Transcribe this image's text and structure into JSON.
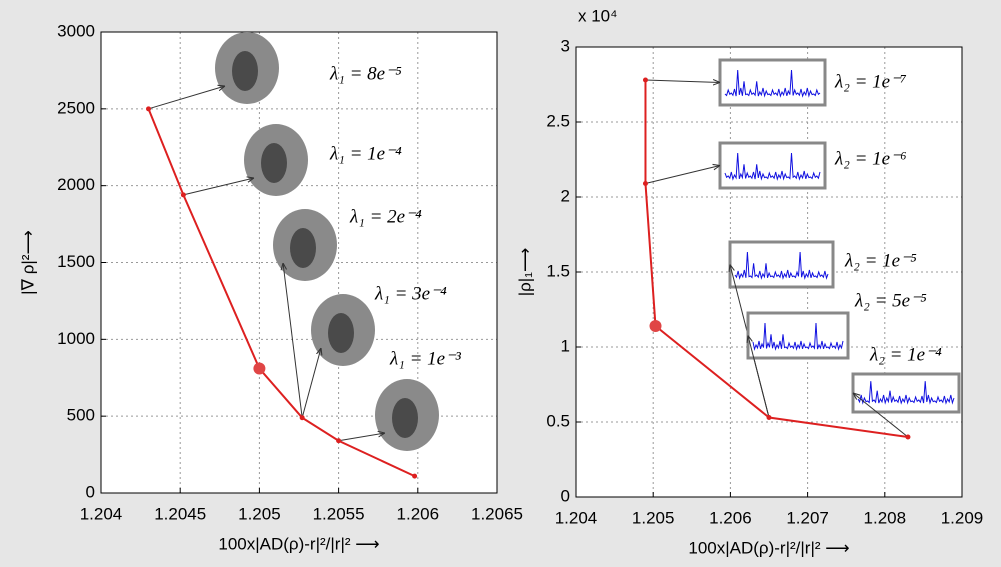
{
  "chart_data": [
    {
      "type": "line",
      "x": [
        1.2043,
        1.20452,
        1.205,
        1.20527,
        1.2055,
        1.20598
      ],
      "values": [
        2500,
        1940,
        810,
        490,
        340,
        110
      ],
      "color": "#dd2020",
      "highlight_index": 2,
      "xlim": [
        1.204,
        1.2065
      ],
      "xticks": [
        1.204,
        1.2045,
        1.205,
        1.2055,
        1.206,
        1.2065
      ],
      "ylim": [
        0,
        3000
      ],
      "yticks": [
        0,
        500,
        1000,
        1500,
        2000,
        2500,
        3000
      ],
      "grid": true,
      "xlabel": "100x|AD(ρ)-r|²/|r|² ⟶",
      "ylabel": "|∇ ρ|²⟶",
      "annotations": [
        "λ₁ = 8e⁻⁵",
        "λ₁ = 1e⁻⁴",
        "λ₁ = 2e⁻⁴",
        "λ₁ = 3e⁻⁴",
        "λ₁ = 1e⁻³"
      ]
    },
    {
      "type": "line",
      "x": [
        1.2049,
        1.2049,
        1.20503,
        1.2065,
        1.2083
      ],
      "values": [
        2.78,
        2.09,
        1.14,
        0.53,
        0.4
      ],
      "color": "#dd2020",
      "highlight_index": 2,
      "xlim": [
        1.204,
        1.209
      ],
      "xticks": [
        1.204,
        1.205,
        1.206,
        1.207,
        1.208,
        1.209
      ],
      "ylim": [
        0,
        3
      ],
      "yticks": [
        0,
        0.5,
        1,
        1.5,
        2,
        2.5,
        3
      ],
      "grid": true,
      "y_multiplier": "x 10⁴",
      "xlabel": "100x|AD(ρ)-r|²/|r|² ⟶",
      "ylabel": "|ρ|₁⟶",
      "annotations": [
        "λ₂ = 1e⁻⁷",
        "λ₂ = 1e⁻⁶",
        "λ₂ = 1e⁻⁵",
        "λ₂ = 5e⁻⁵",
        "λ₂ = 1e⁻⁴"
      ]
    }
  ]
}
